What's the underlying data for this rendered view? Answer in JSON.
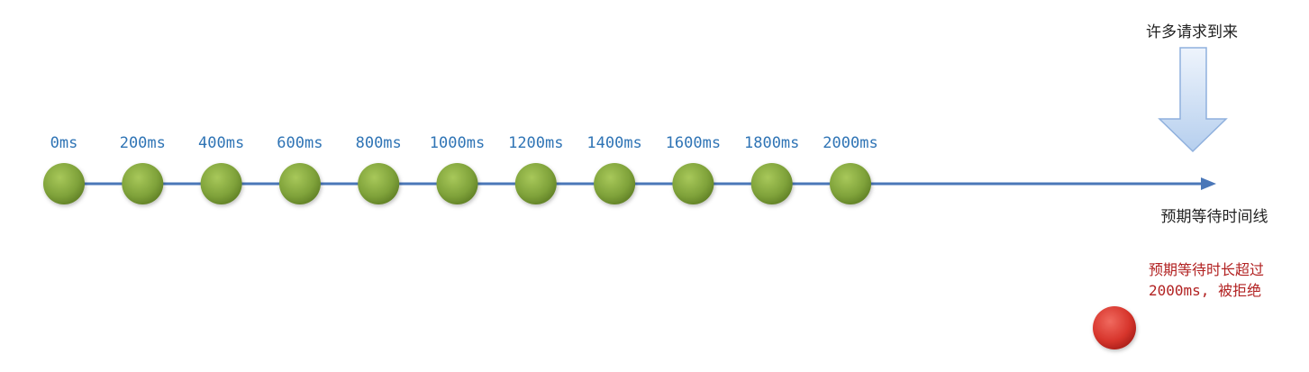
{
  "timeline": {
    "ticks": [
      "0ms",
      "200ms",
      "400ms",
      "600ms",
      "800ms",
      "1000ms",
      "1200ms",
      "1400ms",
      "1600ms",
      "1800ms",
      "2000ms"
    ],
    "axis_label": "预期等待时间线"
  },
  "arrival": {
    "label": "许多请求到来"
  },
  "rejection": {
    "line1": "预期等待时长超过",
    "line2": "2000ms, 被拒绝"
  },
  "colors": {
    "axis": "#4a77b8",
    "node": "#7fa23a",
    "rejected_node": "#d7352c",
    "tick_text": "#2f74b5",
    "reject_text": "#b22222",
    "arrow_fill": "#bcd3f1"
  },
  "icons": {
    "timeline_node": "green-circle",
    "rejected_request": "red-circle",
    "incoming_arrow": "down-arrow-icon"
  }
}
